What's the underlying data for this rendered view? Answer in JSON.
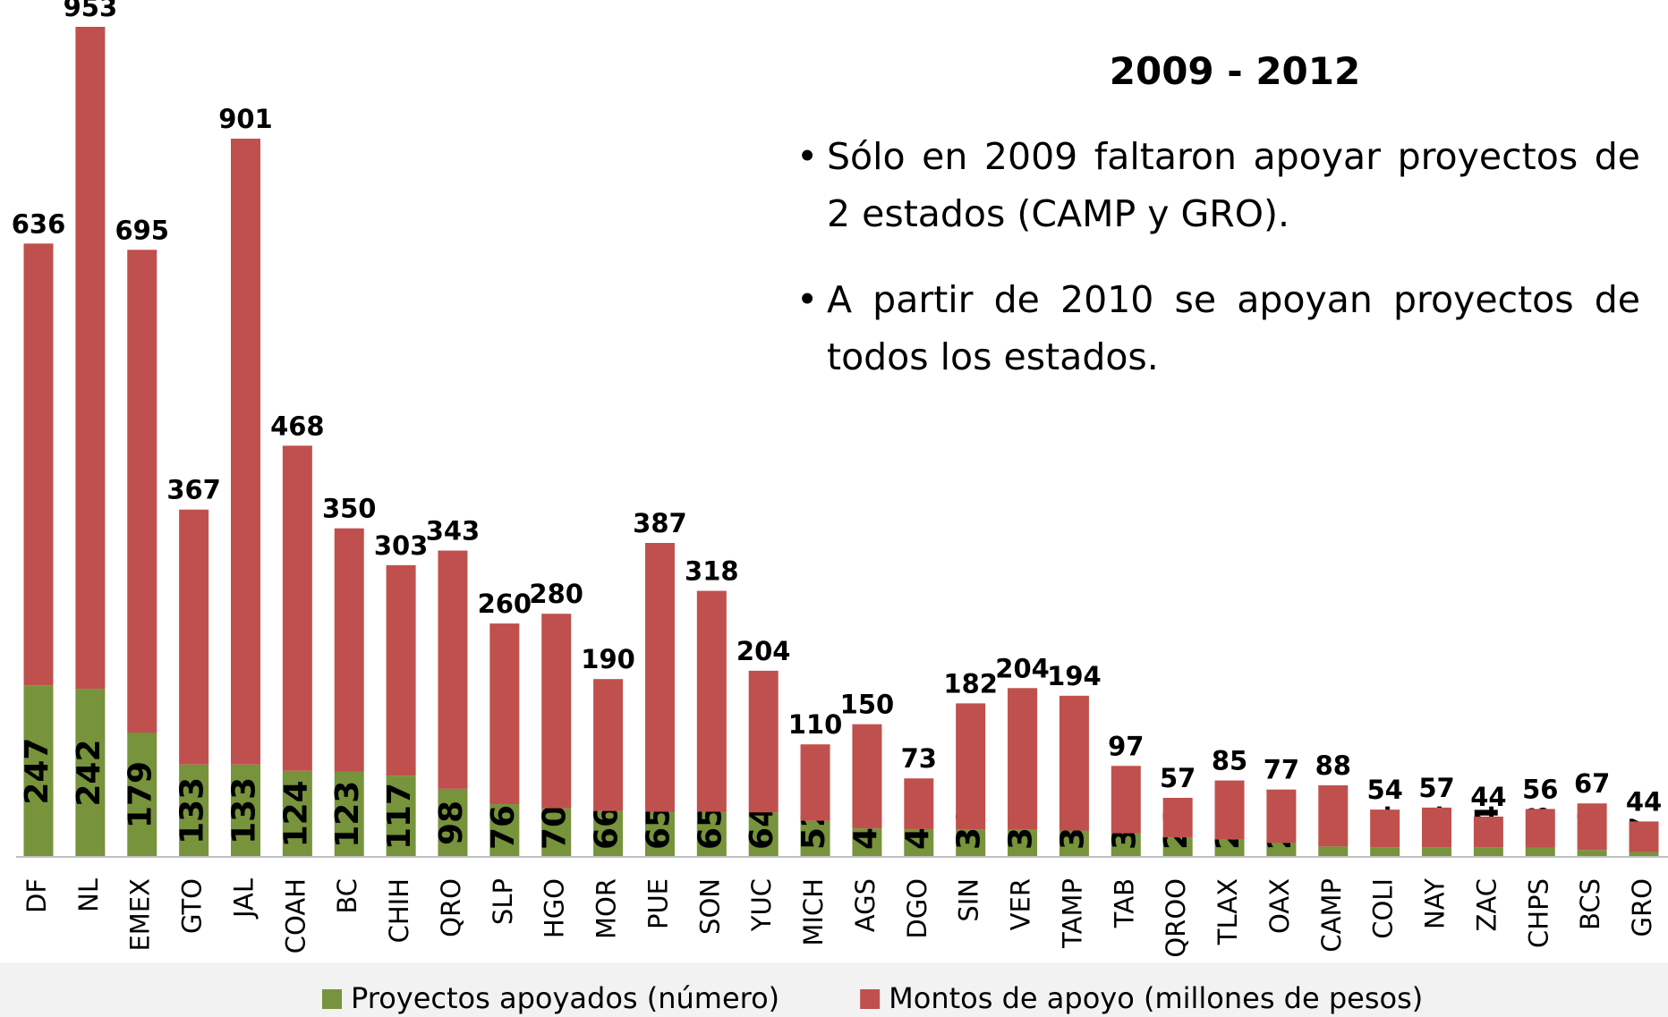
{
  "chart_data": {
    "type": "stacked_bar",
    "title": "2009 - 2012",
    "annotations": [
      "Sólo en 2009 faltaron apoyar proyectos de 2 estados (CAMP y GRO).",
      "A partir de 2010 se apoyan proyectos de todos los estados."
    ],
    "categories": [
      "DF",
      "NL",
      "EMEX",
      "GTO",
      "JAL",
      "COAH",
      "BC",
      "CHIH",
      "QRO",
      "SLP",
      "HGO",
      "MOR",
      "PUE",
      "SON",
      "YUC",
      "MICH",
      "AGS",
      "DGO",
      "SIN",
      "VER",
      "TAMP",
      "TAB",
      "QROO",
      "TLAX",
      "OAX",
      "CAMP",
      "COLI",
      "NAY",
      "ZAC",
      "CHPS",
      "BCS",
      "GRO"
    ],
    "series": [
      {
        "name": "Proyectos apoyados (número)",
        "color": "#77933c",
        "values": [
          247,
          242,
          179,
          133,
          133,
          124,
          123,
          117,
          98,
          76,
          70,
          66,
          65,
          65,
          64,
          52,
          41,
          40,
          39,
          39,
          38,
          34,
          28,
          25,
          20,
          15,
          14,
          14,
          14,
          13,
          10,
          7
        ]
      },
      {
        "name": "Montos de apoyo (millones de pesos)",
        "color": "#c0504d",
        "values": [
          636,
          953,
          695,
          367,
          901,
          468,
          350,
          303,
          343,
          260,
          280,
          190,
          387,
          318,
          204,
          110,
          150,
          73,
          182,
          204,
          194,
          97,
          57,
          85,
          77,
          88,
          54,
          57,
          44,
          56,
          67,
          44
        ]
      }
    ],
    "legend": "bottom"
  }
}
